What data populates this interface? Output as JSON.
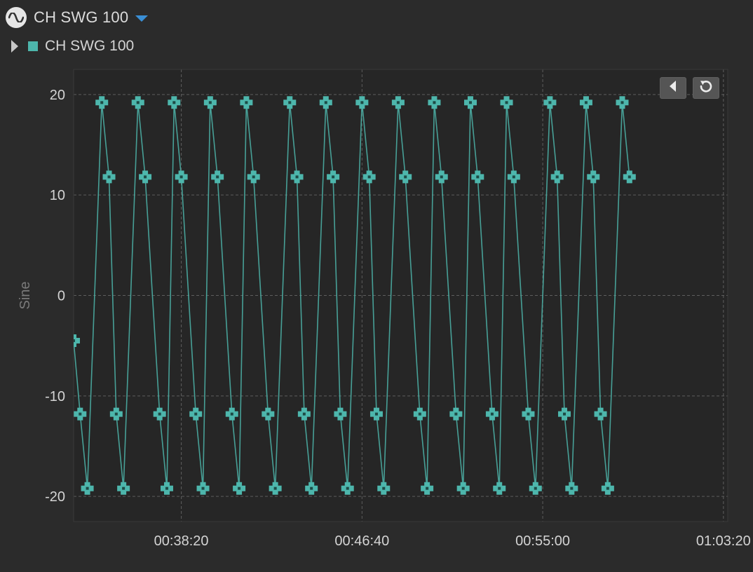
{
  "header": {
    "title": "CH SWG 100",
    "title_icon": "sine-wave-icon",
    "dropdown_icon": "caret-down-icon"
  },
  "legend": {
    "expand_icon": "triangle-right-icon",
    "series_label": "CH SWG 100",
    "swatch_color": "#4db6ac"
  },
  "toolbar": {
    "back_icon": "triangle-left-icon",
    "reset_icon": "reset-icon"
  },
  "colors": {
    "background": "#2b2b2b",
    "plot_background": "#262626",
    "grid": "#5e5e5e",
    "series": "#4db6ac",
    "text": "#d4d4d4",
    "axis_title": "#7a7a7a",
    "accent": "#3a8fd6"
  },
  "chart_data": {
    "type": "line",
    "title": "",
    "xlabel": "",
    "ylabel": "Sine",
    "ylim": [
      -22.5,
      22.5
    ],
    "xlim": [
      "00:33:22",
      "01:03:32"
    ],
    "x_ticks": [
      "00:38:20",
      "00:46:40",
      "00:55:00",
      "01:03:20"
    ],
    "y_ticks": [
      -20,
      -10,
      0,
      10,
      20
    ],
    "grid": true,
    "markers": "cross",
    "series": [
      {
        "name": "CH SWG 100",
        "color": "#4db6ac",
        "x": [
          "00:33:22",
          "00:33:40",
          "00:34:00",
          "00:34:40",
          "00:35:00",
          "00:35:20",
          "00:35:40",
          "00:36:20",
          "00:36:40",
          "00:37:20",
          "00:37:40",
          "00:38:00",
          "00:38:20",
          "00:39:00",
          "00:39:20",
          "00:39:40",
          "00:40:00",
          "00:40:40",
          "00:41:00",
          "00:41:20",
          "00:41:40",
          "00:42:20",
          "00:42:40",
          "00:43:20",
          "00:43:40",
          "00:44:00",
          "00:44:20",
          "00:45:00",
          "00:45:20",
          "00:45:40",
          "00:46:00",
          "00:46:40",
          "00:47:00",
          "00:47:20",
          "00:47:40",
          "00:48:20",
          "00:48:40",
          "00:49:20",
          "00:49:40",
          "00:50:00",
          "00:50:20",
          "00:51:00",
          "00:51:20",
          "00:51:40",
          "00:52:00",
          "00:52:40",
          "00:53:00",
          "00:53:20",
          "00:53:40",
          "00:54:20",
          "00:54:40",
          "00:55:20",
          "00:55:40",
          "00:56:00",
          "00:56:20",
          "00:57:00",
          "00:57:20",
          "00:57:40",
          "00:58:00",
          "00:58:40",
          "00:59:00"
        ],
        "y": [
          -4.5,
          -11.8,
          -19.2,
          19.2,
          11.8,
          -11.8,
          -19.2,
          19.2,
          11.8,
          -11.8,
          -19.2,
          19.2,
          11.8,
          -11.8,
          -19.2,
          19.2,
          11.8,
          -11.8,
          -19.2,
          19.2,
          11.8,
          -11.8,
          -19.2,
          19.2,
          11.8,
          -11.8,
          -19.2,
          19.2,
          11.8,
          -11.8,
          -19.2,
          19.2,
          11.8,
          -11.8,
          -19.2,
          19.2,
          11.8,
          -11.8,
          -19.2,
          19.2,
          11.8,
          -11.8,
          -19.2,
          19.2,
          11.8,
          -11.8,
          -19.2,
          19.2,
          11.8,
          -11.8,
          -19.2,
          19.2,
          11.8,
          -11.8,
          -19.2,
          19.2,
          11.8,
          -11.8,
          -19.2,
          19.2,
          11.8
        ]
      }
    ]
  }
}
